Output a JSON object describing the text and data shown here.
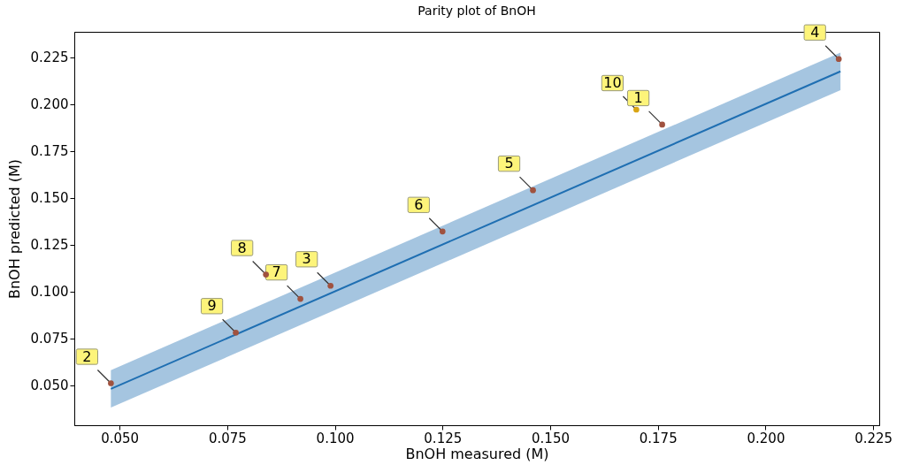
{
  "chart_data": {
    "type": "scatter",
    "title": "Parity plot of BnOH",
    "xlabel": "BnOH measured (M)",
    "ylabel": "BnOH predicted (M)",
    "xlim": [
      0.0395,
      0.2264
    ],
    "ylim": [
      0.0286,
      0.2385
    ],
    "xticks": [
      {
        "value": 0.05,
        "label": "0.050"
      },
      {
        "value": 0.075,
        "label": "0.075"
      },
      {
        "value": 0.1,
        "label": "0.100"
      },
      {
        "value": 0.125,
        "label": "0.125"
      },
      {
        "value": 0.15,
        "label": "0.150"
      },
      {
        "value": 0.175,
        "label": "0.175"
      },
      {
        "value": 0.2,
        "label": "0.200"
      },
      {
        "value": 0.225,
        "label": "0.225"
      }
    ],
    "yticks": [
      {
        "value": 0.05,
        "label": "0.050"
      },
      {
        "value": 0.075,
        "label": "0.075"
      },
      {
        "value": 0.1,
        "label": "0.100"
      },
      {
        "value": 0.125,
        "label": "0.125"
      },
      {
        "value": 0.15,
        "label": "0.150"
      },
      {
        "value": 0.175,
        "label": "0.175"
      },
      {
        "value": 0.2,
        "label": "0.200"
      },
      {
        "value": 0.225,
        "label": "0.225"
      }
    ],
    "grid": false,
    "series": [
      {
        "type": "line",
        "color": "#1f6fb2",
        "x": [
          0.048,
          0.2174
        ],
        "values": [
          0.048,
          0.2174
        ],
        "lower": [
          0.038,
          0.2074
        ],
        "upper": [
          0.058,
          0.2274
        ]
      },
      {
        "colors": [
          "#a0523f",
          "#a0523f",
          "#a0523f",
          "#a0523f",
          "#a0523f",
          "#a0523f",
          "#a0523f",
          "#a0523f",
          "#a0523f",
          "#d9a514"
        ],
        "x": [
          0.176,
          0.048,
          0.099,
          0.217,
          0.146,
          0.125,
          0.092,
          0.084,
          0.077,
          0.17
        ],
        "values": [
          0.189,
          0.051,
          0.103,
          0.224,
          0.154,
          0.132,
          0.096,
          0.109,
          0.078,
          0.197
        ]
      }
    ],
    "annotations": [
      {
        "text": "1",
        "x": 0.176,
        "y": 0.189
      },
      {
        "text": "2",
        "x": 0.048,
        "y": 0.051
      },
      {
        "text": "3",
        "x": 0.099,
        "y": 0.103
      },
      {
        "text": "4",
        "x": 0.217,
        "y": 0.224
      },
      {
        "text": "5",
        "x": 0.146,
        "y": 0.154
      },
      {
        "text": "6",
        "x": 0.125,
        "y": 0.132
      },
      {
        "text": "7",
        "x": 0.092,
        "y": 0.096
      },
      {
        "text": "8",
        "x": 0.084,
        "y": 0.109
      },
      {
        "text": "9",
        "x": 0.077,
        "y": 0.078
      },
      {
        "text": "10",
        "x": 0.17,
        "y": 0.197
      }
    ]
  }
}
